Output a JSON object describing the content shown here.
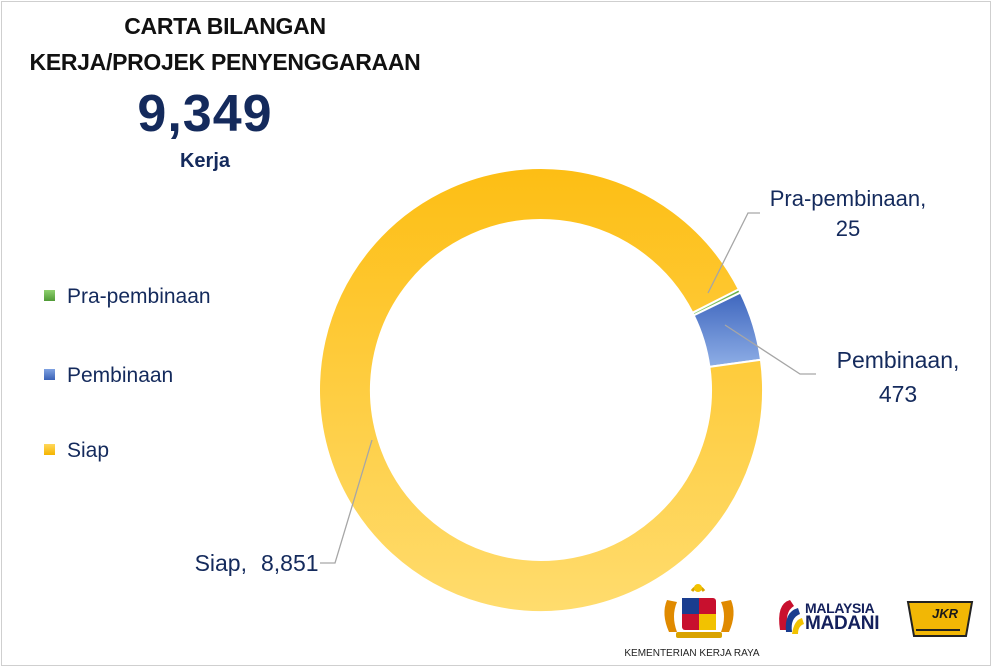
{
  "header": {
    "title_line1": "CARTA BILANGAN",
    "title_line2": "KERJA/PROJEK PENYENGGARAAN",
    "total": "9,349",
    "unit": "Kerja"
  },
  "chart_data": {
    "type": "pie",
    "variant": "donut",
    "categories": [
      "Pra-pembinaan",
      "Pembinaan",
      "Siap"
    ],
    "values": [
      25,
      473,
      8851
    ],
    "value_labels": [
      "25",
      "473",
      "8,851"
    ],
    "colors": [
      "#6ab04c",
      "#4a72c4",
      "#fdc017"
    ],
    "legend_position": "left"
  },
  "legend": [
    {
      "label": "Pra-pembinaan",
      "color": "#6ab04c"
    },
    {
      "label": "Pembinaan",
      "color": "#4a72c4"
    },
    {
      "label": "Siap",
      "color": "#fdc017"
    }
  ],
  "data_labels": {
    "pra_name": "Pra-pembinaan,",
    "pra_value": "25",
    "pembinaan_name": "Pembinaan,",
    "pembinaan_value": "473",
    "siap_name": "Siap,",
    "siap_value": "8,851"
  },
  "logos": {
    "kkr_caption": "KEMENTERIAN KERJA RAYA",
    "madani_line1": "MALAYSIA",
    "madani_line2": "MADANI",
    "jkr": "JKR"
  }
}
